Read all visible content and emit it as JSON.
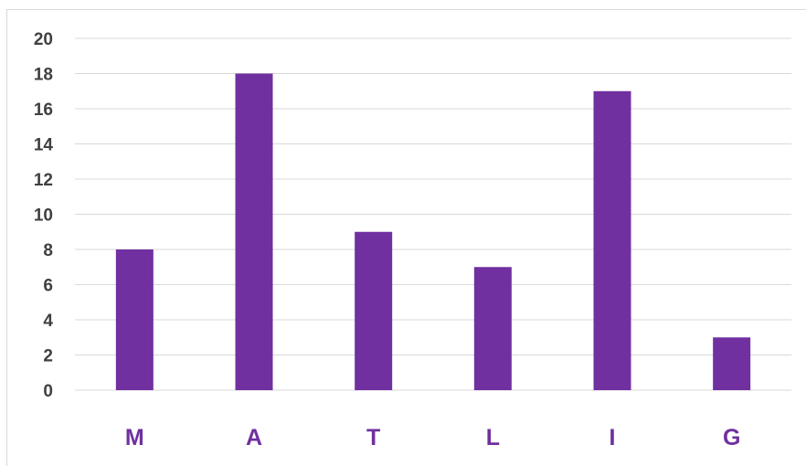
{
  "chart_data": {
    "type": "bar",
    "title": "",
    "xlabel": "",
    "ylabel": "",
    "categories": [
      "M",
      "A",
      "T",
      "L",
      "I",
      "G"
    ],
    "values": [
      8,
      18,
      9,
      7,
      17,
      3
    ],
    "ylim": [
      0,
      20
    ],
    "yticks": [
      "0",
      "2",
      "4",
      "6",
      "8",
      "10",
      "12",
      "14",
      "16",
      "18",
      "20"
    ],
    "grid": true,
    "legend": "none",
    "colors": {
      "bar": "#7030A0",
      "category_label": "#7030A0",
      "tick_label": "#404040",
      "grid": "#d9d9d9"
    }
  }
}
